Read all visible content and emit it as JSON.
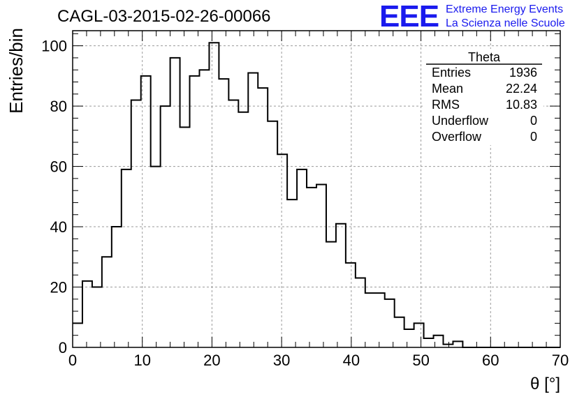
{
  "header": {
    "run_title": "CAGL-03-2015-02-26-00066",
    "logo_text": "EEE",
    "logo_line1": "Extreme Energy Events",
    "logo_line2": "La Scienza nelle Scuole",
    "logo_color": "#1a1aee"
  },
  "stats_box": {
    "title": "Theta",
    "rows": [
      {
        "label": "Entries",
        "value": "1936"
      },
      {
        "label": "Mean",
        "value": "22.24"
      },
      {
        "label": "RMS",
        "value": "10.83"
      },
      {
        "label": "Underflow",
        "value": "0"
      },
      {
        "label": "Overflow",
        "value": "0"
      }
    ]
  },
  "chart_data": {
    "type": "bar",
    "style": "step-histogram",
    "xlabel": "θ [°]",
    "ylabel": "Entries/bin",
    "xlim": [
      0,
      70
    ],
    "ylim": [
      0,
      105
    ],
    "bin_width": 1.4,
    "x_ticks": [
      0,
      10,
      20,
      30,
      40,
      50,
      60,
      70
    ],
    "y_ticks": [
      0,
      20,
      40,
      60,
      80,
      100
    ],
    "grid": true,
    "values": [
      8,
      22,
      20,
      30,
      40,
      59,
      82,
      90,
      60,
      80,
      96,
      73,
      90,
      92,
      101,
      89,
      82,
      78,
      91,
      86,
      75,
      64,
      49,
      59,
      53,
      54,
      35,
      41,
      28,
      23,
      18,
      18,
      16,
      10,
      6,
      8,
      3,
      4,
      1,
      2,
      0,
      0,
      0,
      0,
      0,
      0,
      0,
      0,
      0,
      0
    ]
  }
}
